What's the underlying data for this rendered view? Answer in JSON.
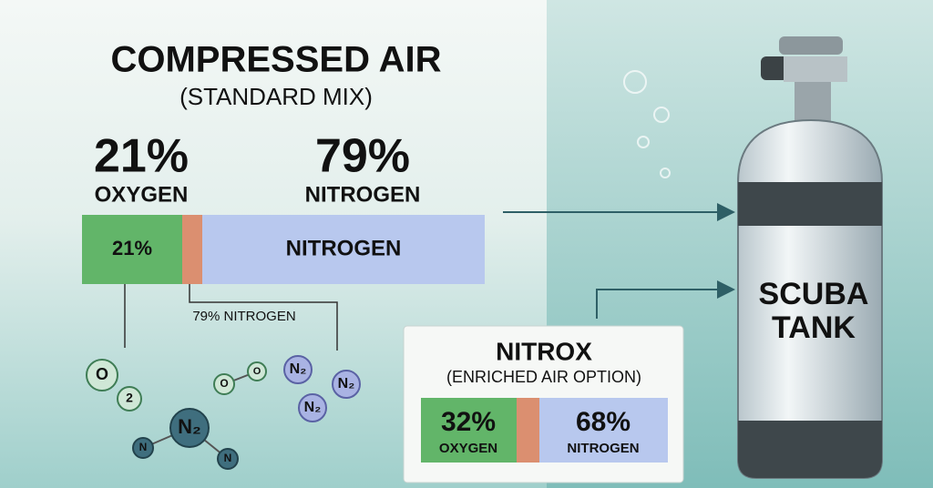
{
  "header": {
    "title": "COMPRESSED AIR",
    "subtitle": "(STANDARD MIX)"
  },
  "standard_mix": {
    "oxygen_percent": "21%",
    "oxygen_label": "OXYGEN",
    "nitrogen_percent": "79%",
    "nitrogen_label": "NITROGEN",
    "bar_oxygen": "21%",
    "bar_nitrogen": "NITROGEN",
    "callout": "79% NITROGEN"
  },
  "molecules": [
    "O",
    "2",
    "O",
    "O",
    "N₂",
    "N",
    "N",
    "N₂",
    "N₂",
    "N₂"
  ],
  "tank": {
    "line1": "SCUBA",
    "line2": "TANK"
  },
  "nitrox": {
    "title": "NITROX",
    "subtitle": "(ENRICHED AIR OPTION)",
    "oxygen_percent": "32%",
    "oxygen_label": "OXYGEN",
    "nitrogen_percent": "68%",
    "nitrogen_label": "NITROGEN"
  }
}
